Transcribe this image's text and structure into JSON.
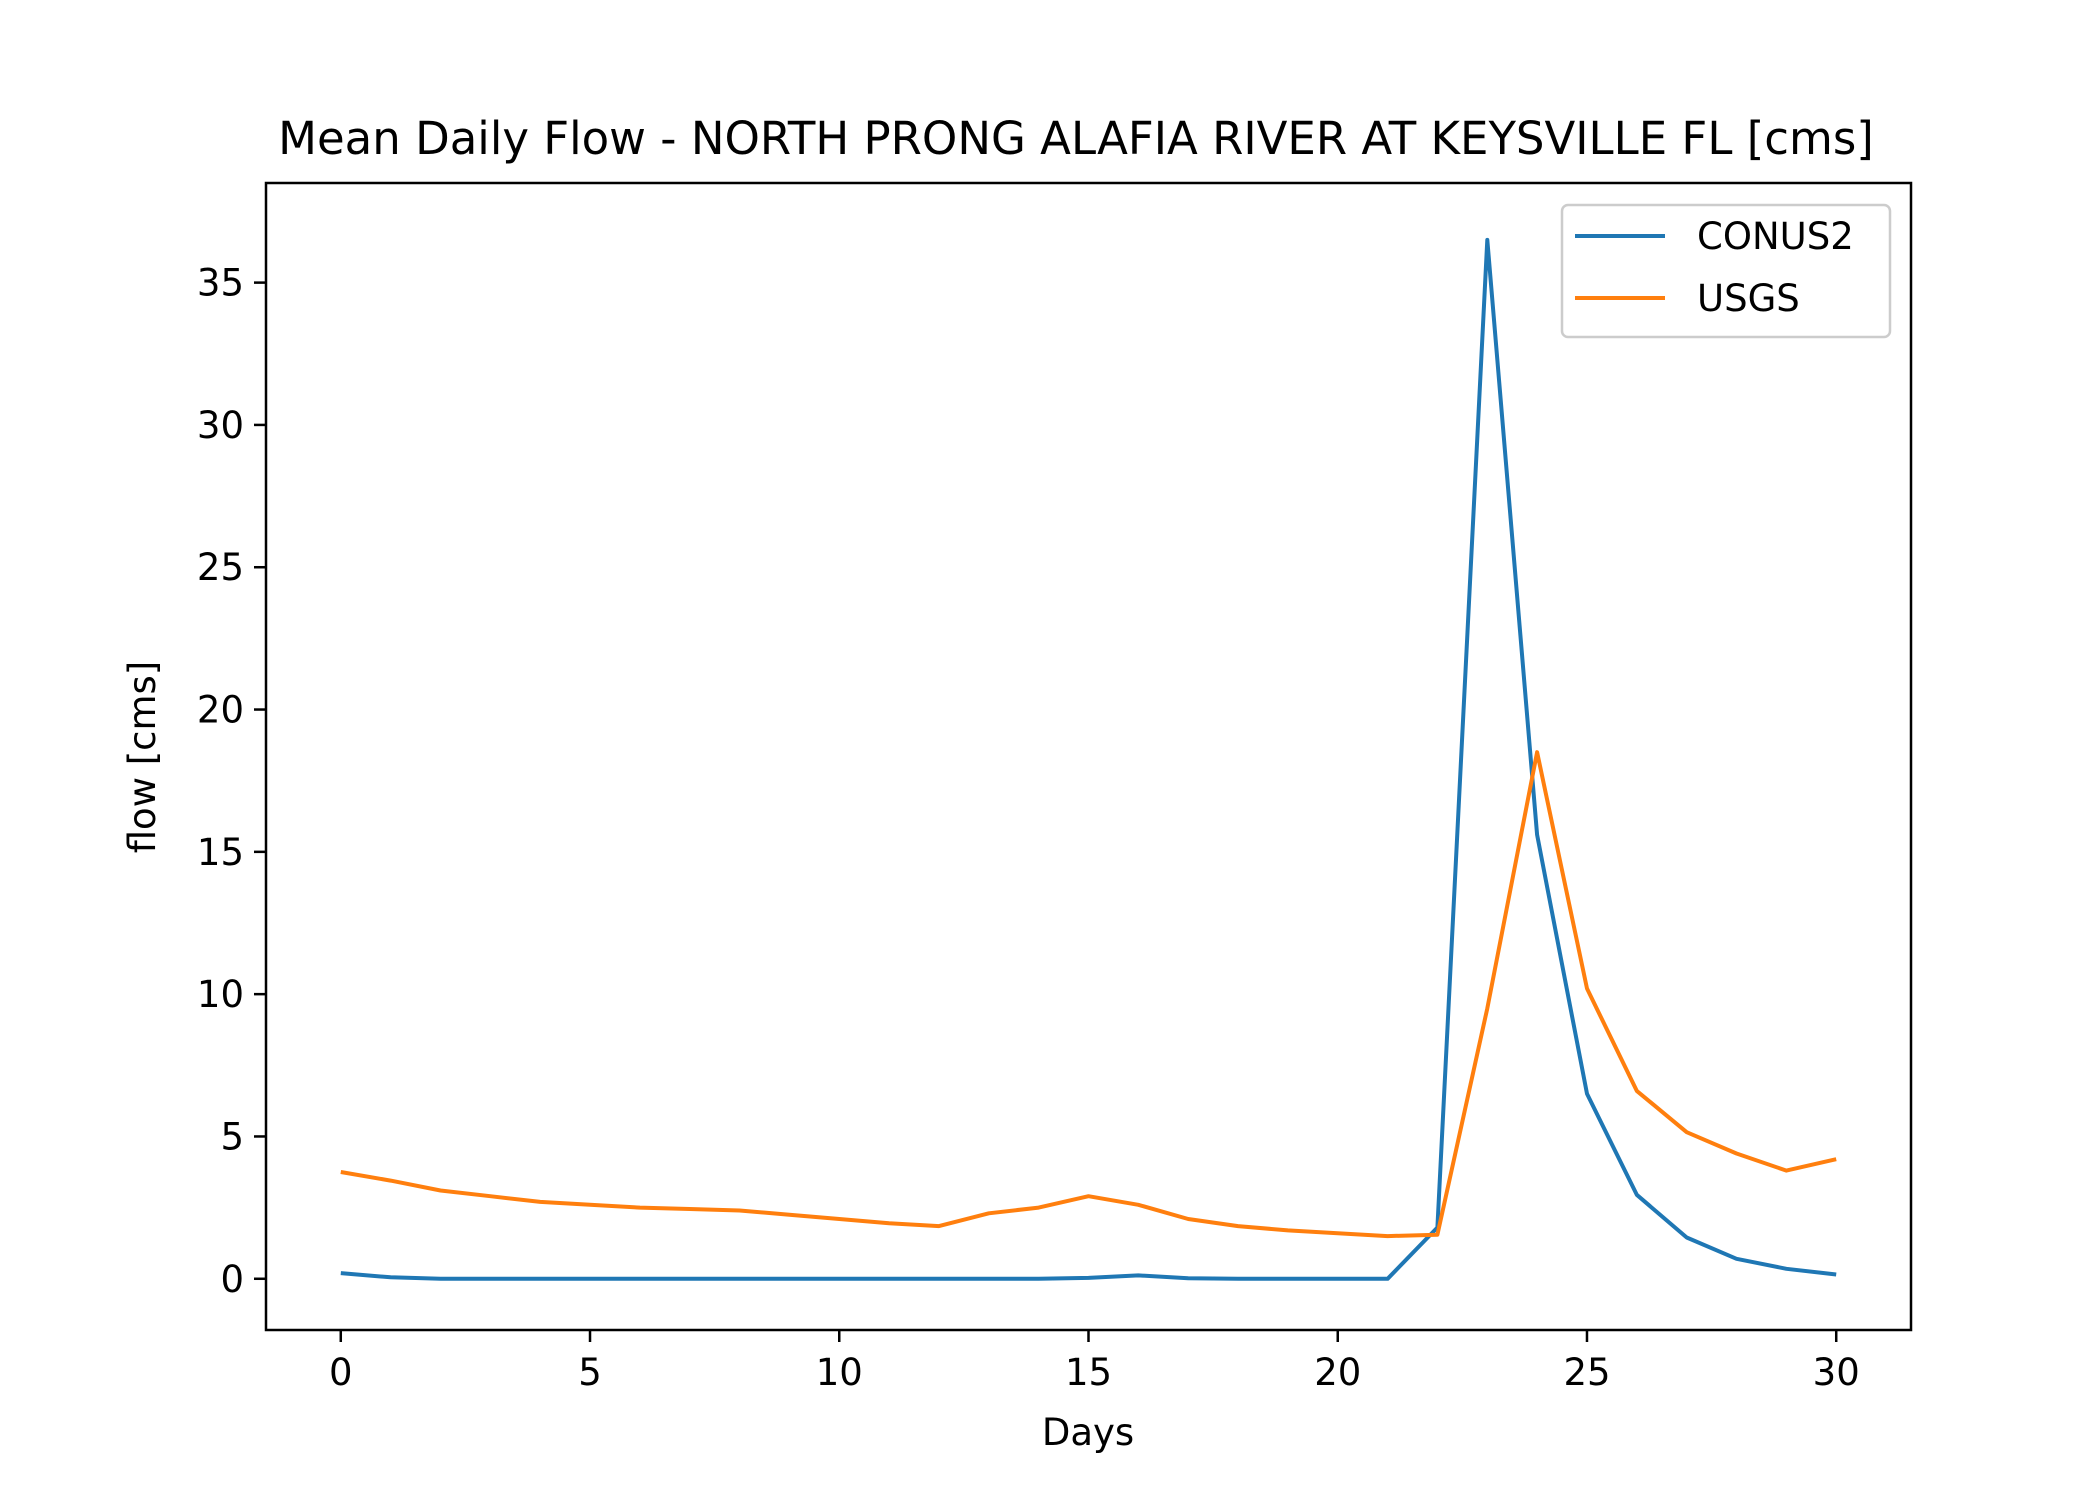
{
  "chart_data": {
    "type": "line",
    "title": "Mean Daily Flow - NORTH PRONG ALAFIA RIVER AT KEYSVILLE FL [cms]",
    "xlabel": "Days",
    "ylabel": "flow [cms]",
    "xlim": [
      -1.5,
      31.5
    ],
    "ylim": [
      -1.8,
      38.5
    ],
    "xticks": [
      0,
      5,
      10,
      15,
      20,
      25,
      30
    ],
    "yticks": [
      0,
      5,
      10,
      15,
      20,
      25,
      30,
      35
    ],
    "grid": false,
    "legend_position": "top-right",
    "x": [
      0,
      1,
      2,
      3,
      4,
      5,
      6,
      7,
      8,
      9,
      10,
      11,
      12,
      13,
      14,
      15,
      16,
      17,
      18,
      19,
      20,
      21,
      22,
      23,
      24,
      25,
      26,
      27,
      28,
      29,
      30
    ],
    "series": [
      {
        "name": "CONUS2",
        "color": "#1f77b4",
        "values": [
          0.2,
          0.05,
          0.0,
          0.0,
          0.0,
          0.0,
          0.0,
          0.0,
          0.0,
          0.0,
          0.0,
          0.0,
          0.0,
          0.0,
          0.0,
          0.03,
          0.12,
          0.02,
          0.0,
          0.0,
          0.0,
          0.0,
          1.8,
          36.5,
          15.6,
          6.5,
          2.95,
          1.45,
          0.7,
          0.35,
          0.15
        ]
      },
      {
        "name": "USGS",
        "color": "#ff7f0e",
        "values": [
          3.75,
          3.45,
          3.1,
          2.9,
          2.7,
          2.6,
          2.5,
          2.45,
          2.4,
          2.25,
          2.1,
          1.95,
          1.85,
          2.3,
          2.5,
          2.9,
          2.6,
          2.1,
          1.85,
          1.7,
          1.6,
          1.5,
          1.55,
          9.5,
          18.5,
          10.2,
          6.6,
          5.15,
          4.4,
          3.8,
          4.2
        ]
      }
    ]
  }
}
